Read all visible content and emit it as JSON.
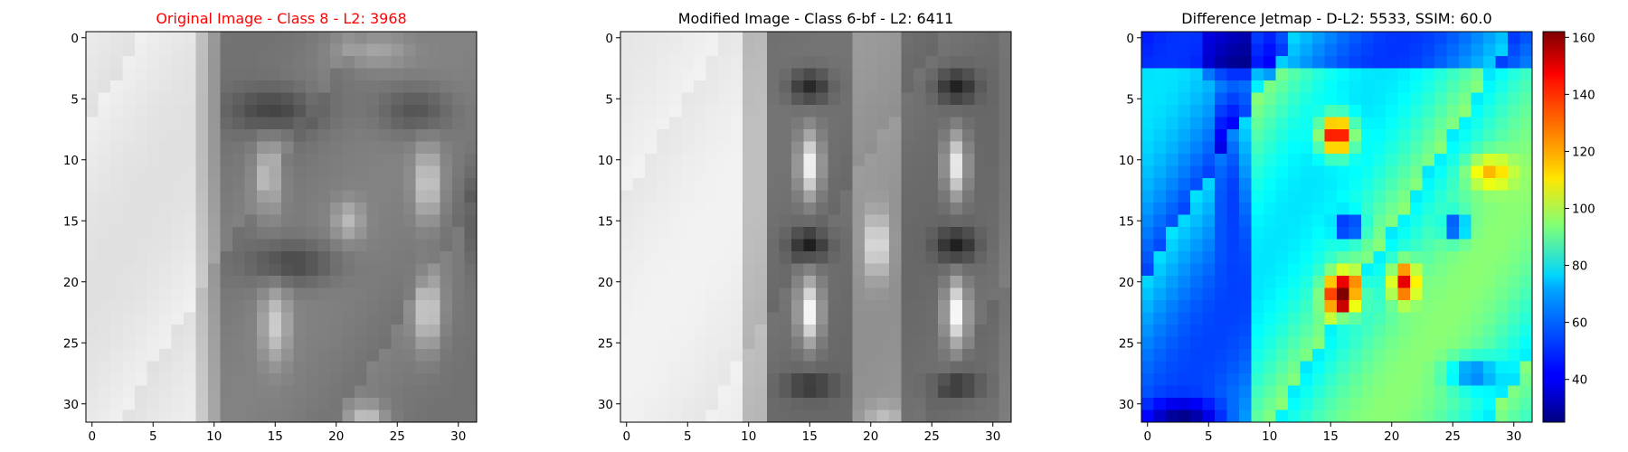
{
  "panels": [
    {
      "title": "Original Image - Class 8 - L2: 3968",
      "title_color": "#ff0000",
      "colormap": "gray",
      "x_ticks": [
        "0",
        "5",
        "10",
        "15",
        "20",
        "25",
        "30"
      ],
      "y_ticks": [
        "0",
        "5",
        "10",
        "15",
        "20",
        "25",
        "30"
      ]
    },
    {
      "title": "Modified Image - Class 6-bf - L2: 6411",
      "title_color": "#000000",
      "colormap": "gray",
      "x_ticks": [
        "0",
        "5",
        "10",
        "15",
        "20",
        "25",
        "30"
      ],
      "y_ticks": [
        "0",
        "5",
        "10",
        "15",
        "20",
        "25",
        "30"
      ]
    },
    {
      "title": "Difference Jetmap - D-L2: 5533, SSIM: 60.0",
      "title_color": "#000000",
      "colormap": "jet",
      "x_ticks": [
        "0",
        "5",
        "10",
        "15",
        "20",
        "25",
        "30"
      ],
      "y_ticks": [
        "0",
        "5",
        "10",
        "15",
        "20",
        "25",
        "30"
      ]
    }
  ],
  "colorbar": {
    "ticks": [
      "40",
      "60",
      "80",
      "100",
      "120",
      "140",
      "160"
    ],
    "range": [
      25,
      162
    ],
    "colormap": "jet"
  },
  "chart_data": [
    {
      "type": "heatmap",
      "title": "Original Image - Class 8 - L2: 3968",
      "grid_size": [
        32,
        32
      ],
      "xlim": [
        -0.5,
        31.5
      ],
      "ylim": [
        31.5,
        -0.5
      ],
      "colormap": "gray",
      "description_values": "32x32 grayscale image (0=black, 255=white): light left background, dark blob rows 5-8 and 17-20 around columns 12-20, lighter vertical ovals near columns 14-15 and 26-28"
    },
    {
      "type": "heatmap",
      "title": "Modified Image - Class 6-bf - L2: 6411",
      "grid_size": [
        32,
        32
      ],
      "xlim": [
        -0.5,
        31.5
      ],
      "ylim": [
        31.5,
        -0.5
      ],
      "colormap": "gray",
      "description_values": "32x32 grayscale image: light left background, two dark vertical rectangles (cols 12-18 and 23-30) each with light ovals at rows 7-13 and 19-26, dark bands at rows 3-6, 15-18, 27-29"
    },
    {
      "type": "heatmap",
      "title": "Difference Jetmap - D-L2: 5533, SSIM: 60.0",
      "grid_size": [
        32,
        32
      ],
      "xlim": [
        -0.5,
        31.5
      ],
      "ylim": [
        31.5,
        -0.5
      ],
      "colormap": "jet",
      "value_range": [
        25,
        162
      ],
      "description_values": "32x32 difference map: low (~30-50) along top rows, high peaks (~150-162) at rows 7-9 col 15 and rows 20-22 col 16, secondary peak ~140 at col 21, dark blue spots at rows 15-16 cols 16 and 25"
    }
  ]
}
